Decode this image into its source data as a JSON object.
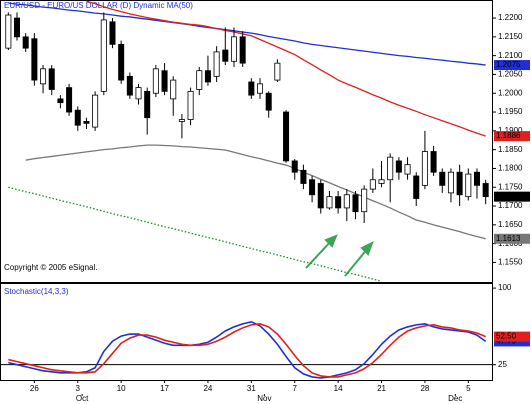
{
  "chart_data": [
    {
      "type": "candlestick",
      "title": "EUR/USD - EURO/US DOLLAR (D) Dynamic MA(50)",
      "annotation": "Copyright © 2005 eSignal.",
      "categories": [
        null,
        null,
        null,
        null,
        null,
        null,
        null,
        null,
        null,
        null,
        null,
        null,
        null,
        null,
        null,
        null,
        null,
        null,
        null,
        null,
        null,
        null,
        null,
        null,
        null,
        null,
        null,
        null,
        null,
        null,
        null,
        null,
        null,
        null,
        null,
        null,
        null,
        null,
        null,
        null,
        null,
        null,
        null,
        null,
        null,
        null,
        null,
        null,
        null,
        null,
        null,
        null,
        null,
        null,
        null,
        null
      ],
      "open": [
        1.212,
        1.22,
        1.215,
        1.2145,
        1.2025,
        1.2065,
        1.1985,
        1.2015,
        1.1955,
        1.1925,
        1.191,
        1.2005,
        1.219,
        1.213,
        1.2045,
        1.1985,
        1.2005,
        1.2,
        1.206,
        1.1985,
        1.1925,
        1.193,
        1.201,
        1.206,
        1.2045,
        1.2115,
        1.2085,
        1.215,
        1.203,
        1.2,
        1.2,
        1.2035,
        1.195,
        1.182,
        1.1795,
        1.177,
        1.176,
        1.1695,
        1.1725,
        1.1695,
        1.173,
        1.1685,
        1.1745,
        1.176,
        1.177,
        1.182,
        1.1785,
        1.178,
        1.1755,
        1.1845,
        1.179,
        1.1735,
        1.179,
        1.1725,
        1.179,
        1.176
      ],
      "high": [
        1.2215,
        1.2215,
        1.216,
        1.216,
        1.2075,
        1.2075,
        1.1995,
        1.2025,
        1.1965,
        1.1935,
        1.2005,
        1.2215,
        1.22,
        1.214,
        1.2055,
        1.2025,
        1.2015,
        1.2075,
        1.208,
        1.2045,
        1.1945,
        1.2015,
        1.207,
        1.21,
        1.2125,
        1.2175,
        1.2175,
        1.2165,
        1.204,
        1.204,
        1.2005,
        1.209,
        1.1955,
        1.1825,
        1.181,
        1.178,
        1.177,
        1.174,
        1.174,
        1.1745,
        1.174,
        1.1755,
        1.18,
        1.182,
        1.184,
        1.183,
        1.183,
        1.179,
        1.19,
        1.186,
        1.18,
        1.18,
        1.181,
        1.18,
        1.18,
        1.177
      ],
      "low": [
        1.2115,
        1.214,
        1.211,
        1.202,
        1.2,
        1.1995,
        1.196,
        1.194,
        1.19,
        1.1905,
        1.19,
        1.1995,
        1.212,
        1.2025,
        1.1985,
        1.197,
        1.189,
        1.199,
        1.1995,
        1.194,
        1.188,
        1.1915,
        1.1995,
        1.202,
        1.203,
        1.2075,
        1.207,
        1.207,
        1.1985,
        1.1985,
        1.1935,
        1.203,
        1.1815,
        1.177,
        1.1745,
        1.171,
        1.168,
        1.169,
        1.168,
        1.166,
        1.1665,
        1.1655,
        1.1735,
        1.175,
        1.171,
        1.177,
        1.177,
        1.17,
        1.1745,
        1.178,
        1.1735,
        1.171,
        1.17,
        1.1715,
        1.172,
        1.1705
      ],
      "close": [
        1.2208,
        1.215,
        1.212,
        1.2035,
        1.2065,
        1.201,
        1.1975,
        1.195,
        1.1915,
        1.192,
        1.1995,
        1.2195,
        1.213,
        1.2035,
        1.1995,
        1.2015,
        1.1935,
        1.2065,
        1.2005,
        1.2035,
        1.193,
        1.2005,
        1.206,
        1.203,
        1.211,
        1.2085,
        1.215,
        1.208,
        1.1995,
        1.2025,
        1.1955,
        1.208,
        1.182,
        1.179,
        1.176,
        1.173,
        1.1695,
        1.1725,
        1.1695,
        1.173,
        1.1685,
        1.1745,
        1.177,
        1.177,
        1.183,
        1.179,
        1.181,
        1.172,
        1.1845,
        1.179,
        1.1755,
        1.179,
        1.173,
        1.1785,
        1.1755,
        1.1725
      ],
      "close_label": "1.1725",
      "series": [
        {
          "color": "#1f2fd6",
          "style": "solid",
          "end_label": "1.2075",
          "values": [
            1.224,
            1.2237,
            1.2235,
            1.2232,
            1.2229,
            1.2227,
            1.2224,
            1.2221,
            1.2219,
            1.2216,
            1.2213,
            1.2211,
            1.2208,
            1.2205,
            1.2203,
            1.22,
            1.2197,
            1.2194,
            1.2191,
            1.2188,
            1.2185,
            1.2182,
            1.2178,
            1.2175,
            1.2172,
            1.2169,
            1.2166,
            1.2163,
            1.216,
            1.2156,
            1.2151,
            1.2147,
            1.2143,
            1.2139,
            1.2134,
            1.213,
            1.2127,
            1.2124,
            1.2121,
            1.2118,
            1.2115,
            1.2112,
            1.2109,
            1.2106,
            1.2103,
            1.21,
            1.2098,
            1.2095,
            1.2093,
            1.209,
            1.2088,
            1.2085,
            1.2083,
            1.208,
            1.2078,
            1.2075
          ]
        },
        {
          "color": "#e0201c",
          "style": "solid",
          "end_label": "1.1886",
          "values": [
            null,
            null,
            null,
            null,
            null,
            null,
            null,
            null,
            null,
            1.2245,
            1.2238,
            1.223,
            1.2223,
            1.2217,
            1.2211,
            1.2206,
            1.2201,
            1.2197,
            1.2193,
            1.2189,
            1.2186,
            1.2183,
            1.2181,
            1.2177,
            1.2172,
            1.2167,
            1.2163,
            1.2158,
            1.2153,
            1.2143,
            1.2133,
            1.2123,
            1.2113,
            1.2103,
            1.2089,
            1.2076,
            1.2062,
            1.2049,
            1.2035,
            1.2025,
            1.2016,
            1.2006,
            1.1996,
            1.1987,
            1.1977,
            1.1968,
            1.196,
            1.1952,
            1.1943,
            1.1935,
            1.1927,
            1.1919,
            1.1911,
            1.1902,
            1.1894,
            1.1886
          ]
        },
        {
          "color": "#777777",
          "style": "solid",
          "end_label": "1.1613",
          "values": [
            null,
            null,
            1.1822,
            1.1826,
            1.1829,
            1.1832,
            1.1835,
            1.1838,
            1.1841,
            1.1844,
            1.1847,
            1.185,
            1.1852,
            1.1855,
            1.1857,
            1.186,
            1.1862,
            1.1862,
            1.1861,
            1.186,
            1.1858,
            1.1857,
            1.1855,
            1.1853,
            1.1851,
            1.1849,
            1.1843,
            1.1837,
            1.1831,
            1.1826,
            1.182,
            1.1814,
            1.1809,
            1.18,
            1.179,
            1.1781,
            1.1771,
            1.1762,
            1.1752,
            1.1743,
            1.1733,
            1.1724,
            1.1714,
            1.1705,
            1.1695,
            1.1684,
            1.1674,
            1.1663,
            1.1657,
            1.165,
            1.1644,
            1.1638,
            1.1632,
            1.1625,
            1.1619,
            1.1613
          ]
        },
        {
          "color": "#1d8a2a",
          "style": "dotted",
          "values": [
            1.175,
            1.1744,
            1.1738,
            1.1733,
            1.1727,
            1.1721,
            1.1715,
            1.1709,
            1.1704,
            1.1698,
            1.1692,
            1.1686,
            1.168,
            1.1674,
            1.1669,
            1.1663,
            1.1657,
            1.1651,
            1.1645,
            1.164,
            1.1634,
            1.1628,
            1.1622,
            1.1616,
            1.1611,
            1.1605,
            1.1599,
            1.1593,
            1.1587,
            1.1581,
            1.1576,
            1.157,
            1.1564,
            1.1558,
            1.1552,
            1.1547,
            1.1541,
            1.1535,
            1.1529,
            1.1523,
            1.1518,
            1.1512,
            1.1506,
            1.15,
            null,
            null,
            null,
            null,
            null,
            null,
            null,
            null,
            null,
            null,
            null,
            null
          ]
        }
      ],
      "ylim": [
        1.1498,
        1.2248
      ],
      "yticks": [
        {
          "value": 1.22,
          "label": "1.2200"
        },
        {
          "value": 1.215,
          "label": "1.2150"
        },
        {
          "value": 1.21,
          "label": "1.2100"
        },
        {
          "value": 1.205,
          "label": "1.2050"
        },
        {
          "value": 1.2,
          "label": "1.2000"
        },
        {
          "value": 1.195,
          "label": "1.1950"
        },
        {
          "value": 1.19,
          "label": "1.1900"
        },
        {
          "value": 1.185,
          "label": "1.1850"
        },
        {
          "value": 1.18,
          "label": "1.1800"
        },
        {
          "value": 1.175,
          "label": "1.1750"
        },
        {
          "value": 1.17,
          "label": "1.1700"
        },
        {
          "value": 1.165,
          "label": "1.1650"
        },
        {
          "value": 1.16,
          "label": "1.1600"
        },
        {
          "value": 1.155,
          "label": "1.1550"
        }
      ]
    },
    {
      "type": "line",
      "title": "Stochastic(14,3,3)",
      "categories": [
        null,
        null,
        null,
        null,
        null,
        null,
        null,
        null,
        null,
        null,
        null,
        null,
        null,
        null,
        null,
        null,
        null,
        null,
        null,
        null,
        null,
        null,
        null,
        null,
        null,
        null,
        null,
        null,
        null,
        null,
        null,
        null,
        null,
        null,
        null,
        null,
        null,
        null,
        null,
        null,
        null,
        null,
        null,
        null,
        null,
        null,
        null,
        null,
        null,
        null,
        null,
        null,
        null,
        null,
        null,
        null
      ],
      "series": [
        {
          "color": "#1f2fd6",
          "end_label": "47.79",
          "values": [
            27,
            25,
            23,
            21,
            19,
            18,
            17,
            17,
            17,
            18,
            22,
            38,
            48,
            53,
            55,
            55,
            52,
            49,
            46,
            44,
            44,
            44,
            45,
            47,
            52,
            58,
            62,
            65,
            67,
            63,
            55,
            45,
            33,
            22,
            16,
            13,
            12,
            13,
            15,
            17,
            20,
            26,
            35,
            45,
            53,
            59,
            62,
            64,
            65,
            62,
            60,
            59,
            58,
            57,
            54,
            47.79
          ]
        },
        {
          "color": "#e0201c",
          "end_label": "52.50",
          "values": [
            30,
            28,
            26,
            24,
            22,
            20,
            19,
            18,
            17,
            17,
            18,
            26,
            36,
            46,
            51,
            54,
            54,
            52,
            49,
            47,
            45,
            44,
            44,
            45,
            48,
            52,
            57,
            61,
            64,
            65,
            62,
            55,
            45,
            34,
            24,
            17,
            14,
            13,
            13,
            15,
            17,
            21,
            27,
            35,
            44,
            52,
            58,
            61,
            63,
            64,
            62,
            61,
            59,
            58,
            56,
            52.5
          ]
        }
      ],
      "ylim": [
        10,
        105
      ],
      "yticks": [
        100,
        25
      ],
      "hlines": [
        25
      ],
      "xticks": [
        {
          "value": 3,
          "label": "26"
        },
        {
          "value": 8,
          "label": "3"
        },
        {
          "value": 13,
          "label": "10"
        },
        {
          "value": 18,
          "label": "17"
        },
        {
          "value": 23,
          "label": "24"
        },
        {
          "value": 28,
          "label": "31"
        },
        {
          "value": 33,
          "label": "7"
        },
        {
          "value": 38,
          "label": "14"
        },
        {
          "value": 43,
          "label": "21"
        },
        {
          "value": 48,
          "label": "28"
        },
        {
          "value": 53,
          "label": "5"
        }
      ],
      "month_ticks": [
        {
          "value": 8.5,
          "label": "Oct"
        },
        {
          "value": 29.5,
          "label": "Nov"
        },
        {
          "value": 51.5,
          "label": "Dec"
        }
      ]
    }
  ]
}
